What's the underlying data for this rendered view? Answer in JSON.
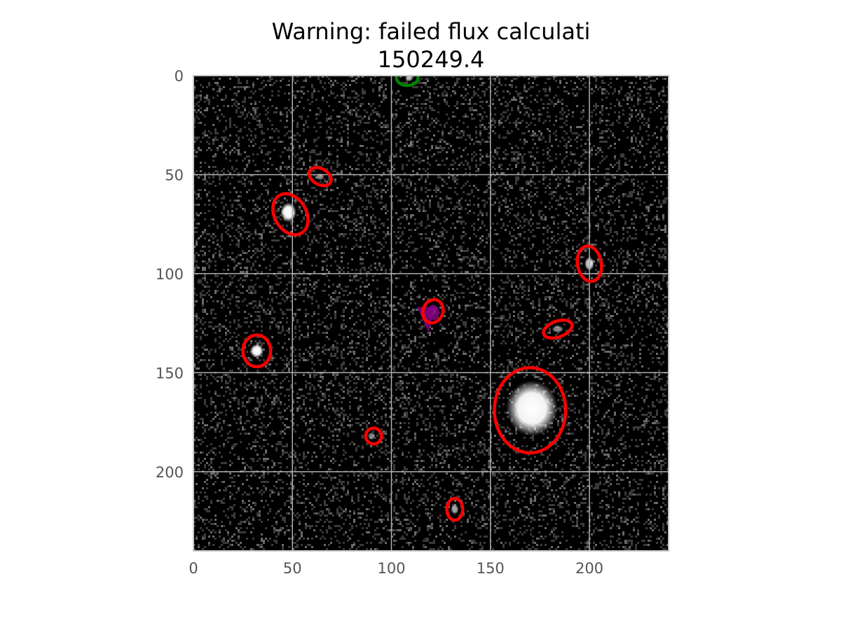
{
  "chart_data": {
    "type": "scatter",
    "title": "Warning: failed flux calculati",
    "subtitle": "150249.4",
    "xlabel": "",
    "ylabel": "",
    "xlim": [
      0,
      240
    ],
    "ylim": [
      240,
      0
    ],
    "xticks": [
      0,
      50,
      100,
      150,
      200
    ],
    "yticks": [
      0,
      50,
      100,
      150,
      200
    ],
    "grid": true,
    "background": "grayscale noise image",
    "colors": {
      "source_ellipse": "#ff0000",
      "reference_ellipse": "#008000",
      "target_marker": "#800080",
      "grid": "#b0b0b0",
      "axes_frame": "#c8c8c8"
    },
    "stars": [
      {
        "x": 171,
        "y": 168,
        "rx": 13,
        "ry": 14,
        "brightness": 1.0
      },
      {
        "x": 48,
        "y": 69,
        "rx": 4,
        "ry": 5,
        "brightness": 1.0
      },
      {
        "x": 32,
        "y": 139,
        "rx": 3.5,
        "ry": 3.5,
        "brightness": 1.0
      },
      {
        "x": 64,
        "y": 51,
        "rx": 2.2,
        "ry": 1.8,
        "brightness": 0.55
      },
      {
        "x": 200,
        "y": 95,
        "rx": 2.5,
        "ry": 3.5,
        "brightness": 0.8
      },
      {
        "x": 184,
        "y": 128,
        "rx": 3,
        "ry": 1.8,
        "brightness": 0.55
      },
      {
        "x": 90,
        "y": 182,
        "rx": 2,
        "ry": 2,
        "brightness": 0.5
      },
      {
        "x": 132,
        "y": 219,
        "rx": 2,
        "ry": 2.5,
        "brightness": 0.65
      },
      {
        "x": 121,
        "y": 119,
        "rx": 2,
        "ry": 2.5,
        "brightness": 0.5
      },
      {
        "x": 109,
        "y": 1,
        "rx": 2,
        "ry": 2,
        "brightness": 0.7
      },
      {
        "x": 110,
        "y": 35,
        "rx": 1.5,
        "ry": 1.5,
        "brightness": 0.35
      }
    ],
    "sources": [
      {
        "x": 64,
        "y": 51,
        "width": 12,
        "height": 8,
        "angle": 30
      },
      {
        "x": 49,
        "y": 70,
        "width": 16,
        "height": 22,
        "angle": -30
      },
      {
        "x": 200,
        "y": 95,
        "width": 12,
        "height": 18,
        "angle": -10
      },
      {
        "x": 121,
        "y": 119,
        "width": 10,
        "height": 12,
        "angle": 20
      },
      {
        "x": 184,
        "y": 128,
        "width": 15,
        "height": 8,
        "angle": -20
      },
      {
        "x": 32,
        "y": 139,
        "width": 14,
        "height": 16,
        "angle": 0
      },
      {
        "x": 170,
        "y": 169,
        "width": 36,
        "height": 43,
        "angle": 0
      },
      {
        "x": 91,
        "y": 182,
        "width": 8,
        "height": 8,
        "angle": 0
      },
      {
        "x": 132,
        "y": 219,
        "width": 8,
        "height": 11,
        "angle": 0
      }
    ],
    "reference_sources": [
      {
        "x": 108,
        "y": 1,
        "width": 11,
        "height": 8,
        "angle": 0
      }
    ],
    "target": {
      "x": 120,
      "y": 120
    }
  }
}
